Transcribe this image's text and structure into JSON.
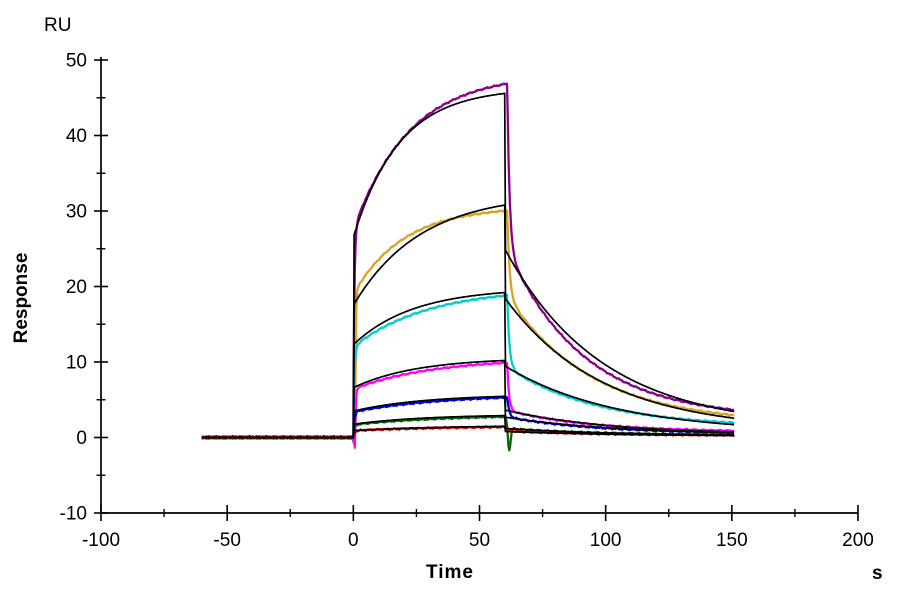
{
  "figure": {
    "background": "#ffffff",
    "axis_color": "#000000",
    "fit_color": "#000000"
  },
  "labels": {
    "y_unit": "RU",
    "y_axis_title": "Response",
    "x_axis_title": "Time",
    "x_unit": "s"
  },
  "chart_data": {
    "type": "line",
    "title": "",
    "xlabel": "Time",
    "xunit": "s",
    "ylabel": "Response",
    "yunit": "RU",
    "xlim": [
      -100,
      200
    ],
    "ylim": [
      -10,
      50
    ],
    "x_ticks": [
      -100,
      -50,
      0,
      50,
      100,
      150,
      200
    ],
    "y_ticks": [
      -10,
      0,
      10,
      20,
      30,
      40,
      50
    ],
    "x_minor_ticks": [
      -75,
      -25,
      25,
      75,
      125,
      175
    ],
    "y_minor_ticks": [
      -5,
      5,
      15,
      25,
      35,
      45
    ],
    "grid": false,
    "legend": "none",
    "description": "SPR sensorgram: 7 analyte concentrations (colored measured curves) with black 1:1 kinetic fit overlays. Baseline -60 to 0 s at 0 RU, association 0-60 s, dissociation 60-151 s.",
    "phases": {
      "baseline_start_s": -60,
      "injection_start_s": 0,
      "injection_end_s": 60,
      "data_end_s": 151
    },
    "series": [
      {
        "name": "curve-1-purple",
        "color": "#8B008B",
        "key_values": {
          "peak_RU": 46.8,
          "post_drop_RU": 25.0,
          "end_RU": 4.0
        },
        "meas": {
          "assoc": {
            "A1": 27.5,
            "k1": 2.6,
            "A2": 20.7,
            "k2": 0.045
          },
          "diss": {
            "C": 2.5,
            "Bf": 21.8,
            "kf": 1.1,
            "Bs": 22.5,
            "ks": 0.033
          },
          "delay": 1.0,
          "seed": 1,
          "baseline_offset": 0.0,
          "artifacts": []
        },
        "fit": {
          "assoc": {
            "A1": 26.5,
            "k1": 28,
            "A2": 19.8,
            "k2": 0.055
          },
          "diss": {
            "C": 1.2,
            "Bf": 20.6,
            "kf": 28,
            "Bs": 23.8,
            "ks": 0.026
          }
        }
      },
      {
        "name": "curve-2-gold",
        "color": "#D9A520",
        "key_values": {
          "peak_RU": 30.0,
          "post_drop_RU": 18.5,
          "end_RU": 2.9
        },
        "meas": {
          "assoc": {
            "A1": 19.0,
            "k1": 2.4,
            "A2": 11.6,
            "k2": 0.05
          },
          "diss": {
            "C": 1.8,
            "Bf": 11.2,
            "kf": 1.1,
            "Bs": 17.0,
            "ks": 0.03
          },
          "delay": 1.0,
          "seed": 2,
          "baseline_offset": -0.05,
          "artifacts": [
            {
              "center": 0.5,
              "sigma": 0.3,
              "to": -2.4
            }
          ]
        },
        "fit": {
          "assoc": {
            "A1": 17.5,
            "k1": 28,
            "A2": 14.8,
            "k2": 0.038
          },
          "diss": {
            "C": 0.9,
            "Bf": 12.3,
            "kf": 28,
            "Bs": 17.6,
            "ks": 0.026
          }
        }
      },
      {
        "name": "curve-3-cyan",
        "color": "#00CDCD",
        "key_values": {
          "peak_RU": 18.8,
          "post_drop_RU": 9.3,
          "end_RU": 1.9
        },
        "meas": {
          "assoc": {
            "A1": 12.0,
            "k1": 2.4,
            "A2": 7.8,
            "k2": 0.034
          },
          "diss": {
            "C": 1.3,
            "Bf": 9.5,
            "kf": 1.2,
            "Bs": 8.0,
            "ks": 0.028
          },
          "delay": 1.0,
          "seed": 3,
          "baseline_offset": 0.06,
          "artifacts": []
        },
        "fit": {
          "assoc": {
            "A1": 12.3,
            "k1": 28,
            "A2": 7.5,
            "k2": 0.042
          },
          "diss": {
            "C": 0.6,
            "Bf": 9.7,
            "kf": 28,
            "Bs": 8.9,
            "ks": 0.023
          }
        }
      },
      {
        "name": "curve-4-magenta",
        "color": "#FF00FF",
        "key_values": {
          "peak_RU": 9.9,
          "post_drop_RU": 3.6,
          "end_RU": 0.9
        },
        "meas": {
          "assoc": {
            "A1": 6.4,
            "k1": 2.2,
            "A2": 4.1,
            "k2": 0.032
          },
          "diss": {
            "C": 0.7,
            "Bf": 6.3,
            "kf": 1.5,
            "Bs": 2.9,
            "ks": 0.03
          },
          "delay": 1.0,
          "seed": 4,
          "baseline_offset": -0.07,
          "artifacts": [
            {
              "center": 0.5,
              "sigma": 0.3,
              "to": -1.6
            }
          ]
        },
        "fit": {
          "assoc": {
            "A1": 6.6,
            "k1": 28,
            "A2": 3.96,
            "k2": 0.04
          },
          "diss": {
            "C": 0.35,
            "Bf": 6.55,
            "kf": 28,
            "Bs": 3.3,
            "ks": 0.024
          }
        }
      },
      {
        "name": "curve-5-blue",
        "color": "#0000E6",
        "key_values": {
          "peak_RU": 5.3,
          "post_drop_RU": 2.7,
          "end_RU": 0.68
        },
        "meas": {
          "assoc": {
            "A1": 3.4,
            "k1": 2.2,
            "A2": 2.33,
            "k2": 0.028
          },
          "diss": {
            "C": 0.5,
            "Bf": 2.6,
            "kf": 1.3,
            "Bs": 2.2,
            "ks": 0.028
          },
          "delay": 1.0,
          "seed": 5,
          "baseline_offset": 0.08,
          "artifacts": []
        },
        "fit": {
          "assoc": {
            "A1": 3.5,
            "k1": 28,
            "A2": 2.22,
            "k2": 0.035
          },
          "diss": {
            "C": 0.3,
            "Bf": 2.75,
            "kf": 28,
            "Bs": 2.4,
            "ks": 0.022
          }
        }
      },
      {
        "name": "curve-6-dark-green",
        "color": "#0A640A",
        "key_values": {
          "peak_RU": 2.75,
          "post_drop_RU": 1.2,
          "end_RU": 0.37
        },
        "meas": {
          "assoc": {
            "A1": 1.7,
            "k1": 2.0,
            "A2": 1.29,
            "k2": 0.028
          },
          "diss": {
            "C": 0.3,
            "Bf": 1.55,
            "kf": 1.3,
            "Bs": 0.9,
            "ks": 0.028
          },
          "delay": 1.0,
          "seed": 6,
          "baseline_offset": -0.06,
          "artifacts": [
            {
              "center": 61.8,
              "sigma": 0.55,
              "to": -1.7
            }
          ]
        },
        "fit": {
          "assoc": {
            "A1": 1.75,
            "k1": 28,
            "A2": 1.31,
            "k2": 0.035
          },
          "diss": {
            "C": 0.2,
            "Bf": 1.65,
            "kf": 28,
            "Bs": 1.0,
            "ks": 0.022
          }
        }
      },
      {
        "name": "curve-7-red",
        "color": "#D40000",
        "key_values": {
          "peak_RU": 1.4,
          "post_drop_RU": 0.85,
          "end_RU": 0.31
        },
        "meas": {
          "assoc": {
            "A1": 0.9,
            "k1": 2.0,
            "A2": 0.64,
            "k2": 0.025
          },
          "diss": {
            "C": 0.25,
            "Bf": 0.55,
            "kf": 1.3,
            "Bs": 0.6,
            "ks": 0.025
          },
          "delay": 1.0,
          "seed": 7,
          "baseline_offset": 0.04,
          "artifacts": []
        },
        "fit": {
          "assoc": {
            "A1": 0.92,
            "k1": 28,
            "A2": 0.66,
            "k2": 0.03
          },
          "diss": {
            "C": 0.15,
            "Bf": 0.65,
            "kf": 28,
            "Bs": 0.65,
            "ks": 0.02
          }
        }
      }
    ]
  }
}
